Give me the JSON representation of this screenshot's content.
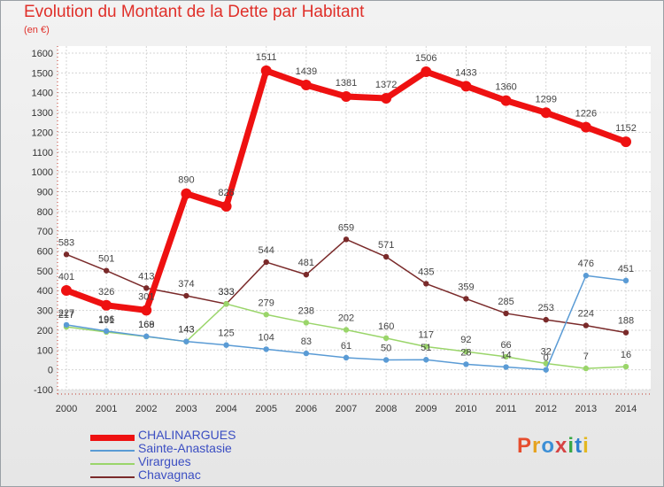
{
  "header": {
    "title": "Evolution du Montant de la Dette par Habitant",
    "subtitle": "(en €)"
  },
  "logo": {
    "text": "Proxiti",
    "colors": [
      "#e64d2e",
      "#e6a21f",
      "#3c8fd6",
      "#d64343",
      "#39a845",
      "#2e7fcf",
      "#e3b820"
    ]
  },
  "chart_data": {
    "type": "line",
    "x": [
      2000,
      2001,
      2002,
      2003,
      2004,
      2005,
      2006,
      2007,
      2008,
      2009,
      2010,
      2011,
      2012,
      2013,
      2014
    ],
    "yticks": [
      -100,
      0,
      100,
      200,
      300,
      400,
      500,
      600,
      700,
      800,
      900,
      1000,
      1100,
      1200,
      1300,
      1400,
      1500,
      1600
    ],
    "ylim": [
      -100,
      1600
    ],
    "grid": true,
    "legend_position": "bottom-left",
    "series": [
      {
        "name": "CHALINARGUES",
        "color": "#ee1111",
        "values": [
          401,
          326,
          301,
          890,
          826,
          1511,
          1439,
          1381,
          1372,
          1506,
          1433,
          1360,
          1299,
          1226,
          1152
        ],
        "labels": [
          "401",
          "326",
          "301",
          "890",
          "826",
          "1511",
          "1439",
          "1381",
          "1372",
          "1506",
          "1433",
          "1360",
          "1299",
          "1226",
          "1152"
        ]
      },
      {
        "name": "Sainte-Anastasie",
        "color": "#5a9bd5",
        "values": [
          227,
          196,
          169,
          143,
          125,
          104,
          83,
          61,
          50,
          51,
          28,
          14,
          0,
          476,
          451
        ],
        "labels": [
          "227",
          "196",
          "169",
          "143",
          "125",
          "104",
          "83",
          "61",
          "50",
          "51",
          "28",
          "14",
          "0",
          "476",
          "451"
        ]
      },
      {
        "name": "Virargues",
        "color": "#9ad56a",
        "values": [
          217,
          191,
          168,
          143,
          333,
          279,
          238,
          202,
          160,
          117,
          92,
          66,
          32,
          7,
          16
        ],
        "labels": [
          "217",
          "191",
          "168",
          "143",
          "333",
          "279",
          "238",
          "202",
          "160",
          "117",
          "92",
          "66",
          "32",
          "7",
          "16"
        ]
      },
      {
        "name": "Chavagnac",
        "color": "#7a2a2a",
        "values": [
          583,
          501,
          413,
          374,
          333,
          544,
          481,
          659,
          571,
          435,
          359,
          285,
          253,
          224,
          188
        ],
        "labels": [
          "583",
          "501",
          "413",
          "374",
          "333",
          "544",
          "481",
          "659",
          "571",
          "435",
          "359",
          "285",
          "253",
          "224",
          "188"
        ]
      }
    ]
  }
}
